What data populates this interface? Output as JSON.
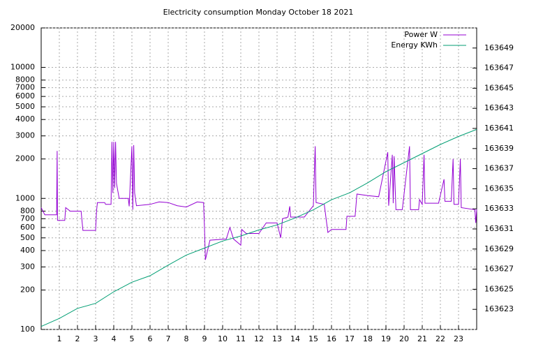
{
  "chart_data": {
    "type": "line",
    "title": "Electricity consumption Monday October 18 2021",
    "xlim": [
      0,
      24
    ],
    "xticks": [
      1,
      2,
      3,
      4,
      5,
      6,
      7,
      8,
      9,
      10,
      11,
      12,
      13,
      14,
      15,
      16,
      17,
      18,
      19,
      20,
      21,
      22,
      23
    ],
    "ylim": [
      100,
      20000
    ],
    "ylog": true,
    "yticks": [
      100,
      200,
      300,
      400,
      500,
      600,
      700,
      800,
      1000,
      2000,
      3000,
      4000,
      5000,
      6000,
      7000,
      8000,
      10000,
      20000
    ],
    "y2lim": [
      163621,
      163651
    ],
    "y2ticks": [
      163623,
      163625,
      163627,
      163629,
      163631,
      163633,
      163635,
      163637,
      163639,
      163641,
      163643,
      163645,
      163647,
      163649
    ],
    "grid": true,
    "legend": "top-right",
    "series": [
      {
        "name": "Power W",
        "color": "#9400d3",
        "x": [
          0,
          0.2,
          0.85,
          0.88,
          0.9,
          1.3,
          1.35,
          1.6,
          2.2,
          2.3,
          3.0,
          3.05,
          3.1,
          3.5,
          3.55,
          3.85,
          3.9,
          3.95,
          4.0,
          4.05,
          4.1,
          4.15,
          4.3,
          4.8,
          4.85,
          5.0,
          5.05,
          5.1,
          5.15,
          5.25,
          6.0,
          6.5,
          7.0,
          7.5,
          8.0,
          8.6,
          8.95,
          9.0,
          9.05,
          9.3,
          10.2,
          10.4,
          10.6,
          11.0,
          11.05,
          11.3,
          12.0,
          12.4,
          13.0,
          13.2,
          13.3,
          13.6,
          13.7,
          13.75,
          14.0,
          14.5,
          15.0,
          15.1,
          15.15,
          15.6,
          15.8,
          16.0,
          16.8,
          16.85,
          17.3,
          17.4,
          18.0,
          18.6,
          19.1,
          19.15,
          19.35,
          19.4,
          19.45,
          19.55,
          19.9,
          20.3,
          20.35,
          20.8,
          20.85,
          21.0,
          21.1,
          21.15,
          21.5,
          21.9,
          22.2,
          22.25,
          22.6,
          22.7,
          22.75,
          23.0,
          23.1,
          23.15,
          23.9,
          23.95,
          24
        ],
        "values": [
          850,
          750,
          750,
          2300,
          680,
          680,
          850,
          800,
          800,
          570,
          570,
          800,
          930,
          930,
          900,
          900,
          2700,
          1100,
          2700,
          1200,
          2700,
          1300,
          1000,
          1000,
          870,
          2500,
          820,
          2550,
          1100,
          880,
          900,
          940,
          930,
          880,
          860,
          940,
          930,
          600,
          340,
          480,
          490,
          600,
          490,
          440,
          580,
          540,
          540,
          650,
          650,
          500,
          700,
          720,
          870,
          720,
          720,
          720,
          880,
          2500,
          930,
          900,
          550,
          580,
          580,
          730,
          730,
          1080,
          1050,
          1030,
          2250,
          880,
          2150,
          920,
          2100,
          820,
          820,
          2500,
          820,
          820,
          980,
          900,
          2150,
          920,
          920,
          920,
          1400,
          950,
          950,
          2000,
          900,
          900,
          2000,
          850,
          820,
          650,
          830
        ]
      },
      {
        "name": "Energy KWh",
        "color": "#009e73",
        "axis": "y2",
        "x": [
          0,
          1,
          2,
          3,
          4,
          5,
          6,
          7,
          8,
          9,
          10,
          11,
          12,
          13,
          14,
          15,
          16,
          17,
          18,
          19,
          20,
          21,
          22,
          23,
          24
        ],
        "values": [
          163621.3,
          163622.1,
          163623.1,
          163623.6,
          163624.75,
          163625.7,
          163626.35,
          163627.4,
          163628.4,
          163629.1,
          163629.8,
          163630.3,
          163630.9,
          163631.4,
          163632.1,
          163632.9,
          163633.9,
          163634.6,
          163635.6,
          163636.7,
          163637.6,
          163638.5,
          163639.4,
          163640.2,
          163640.9
        ]
      }
    ]
  }
}
